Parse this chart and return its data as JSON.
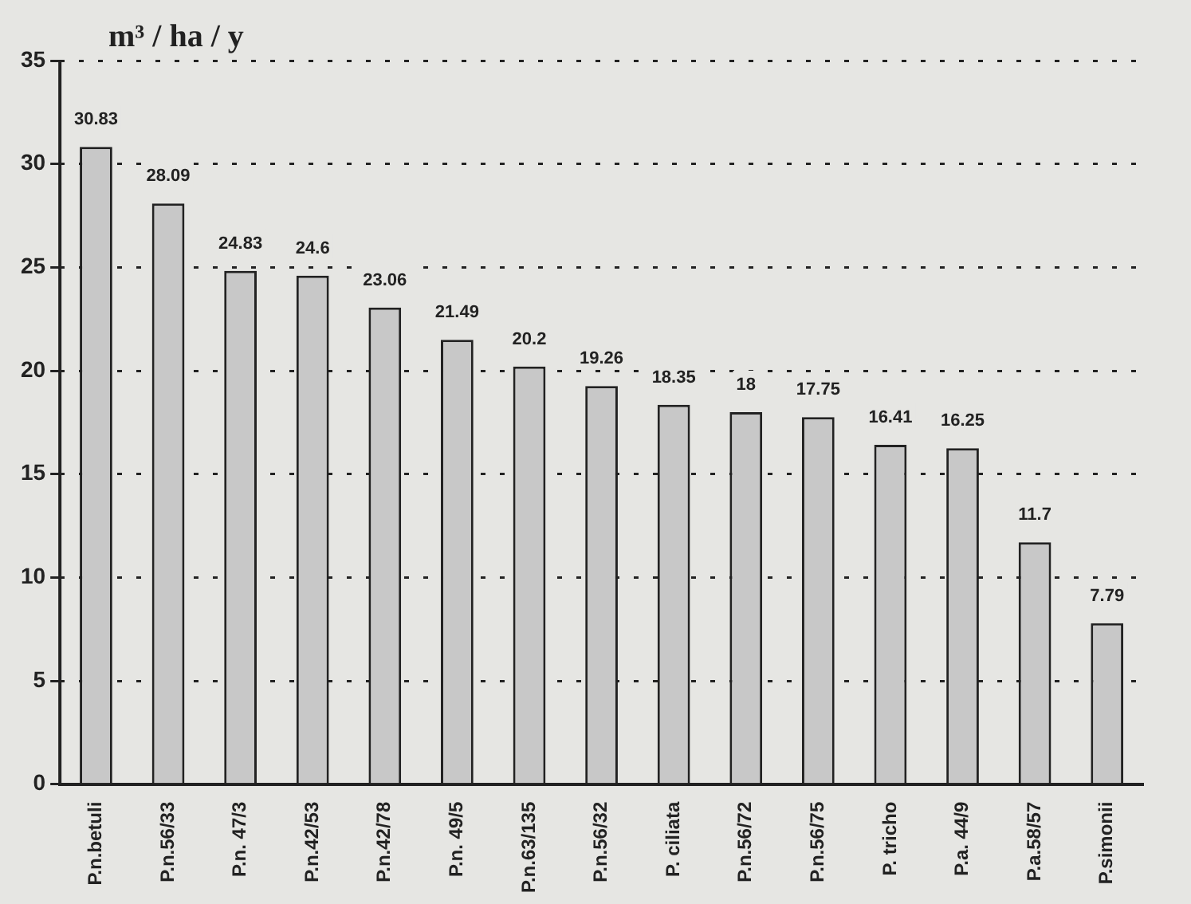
{
  "chart_data": {
    "type": "bar",
    "ylabel": "m³ / ha / y",
    "categories": [
      "P.n.betuli",
      "P.n.56/33",
      "P.n. 47/3",
      "P.n.42/53",
      "P.n.42/78",
      "P.n. 49/5",
      "P.n.63/135",
      "P.n.56/32",
      "P. ciliata",
      "P.n.56/72",
      "P.n.56/75",
      "P. tricho",
      "P.a. 44/9",
      "P.a.58/57",
      "P.simonii"
    ],
    "values": [
      30.83,
      28.09,
      24.83,
      24.6,
      23.06,
      21.49,
      20.2,
      19.26,
      18.35,
      18,
      17.75,
      16.41,
      16.25,
      11.7,
      7.79
    ],
    "color": "#c8c8c8",
    "ylim": [
      0,
      35
    ],
    "yticks": [
      0,
      5,
      10,
      15,
      20,
      25,
      30,
      35
    ],
    "grid": "y",
    "line_style": "dotted",
    "data_labels": true
  }
}
